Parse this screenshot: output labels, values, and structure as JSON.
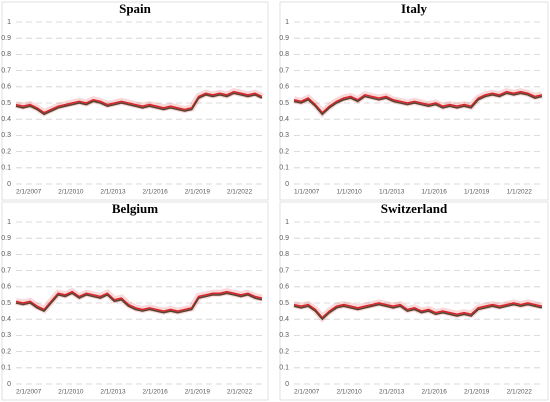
{
  "chart_data": [
    {
      "type": "line",
      "title": "Spain",
      "categories": [
        "2/1/2007",
        null,
        null,
        null,
        null,
        null,
        "2/1/2010",
        null,
        null,
        null,
        null,
        null,
        "2/1/2013",
        null,
        null,
        null,
        null,
        null,
        "2/1/2016",
        null,
        null,
        null,
        null,
        null,
        "2/1/2019",
        null,
        null,
        null,
        null,
        null,
        "2/1/2022",
        null,
        null,
        null,
        null,
        null
      ],
      "series": [
        {
          "color": "#d9262b",
          "values": [
            0.49,
            0.48,
            0.49,
            0.47,
            0.44,
            0.46,
            0.48,
            0.49,
            0.5,
            0.51,
            0.5,
            0.52,
            0.51,
            0.49,
            0.5,
            0.51,
            0.5,
            0.49,
            0.48,
            0.49,
            0.48,
            0.47,
            0.48,
            0.47,
            0.46,
            0.47,
            0.54,
            0.56,
            0.55,
            0.56,
            0.55,
            0.57,
            0.56,
            0.55,
            0.56,
            0.54
          ]
        },
        {
          "color": "#5b4332",
          "values": [
            0.48,
            0.47,
            0.48,
            0.46,
            0.43,
            0.45,
            0.47,
            0.48,
            0.49,
            0.5,
            0.49,
            0.51,
            0.5,
            0.48,
            0.49,
            0.5,
            0.49,
            0.48,
            0.47,
            0.48,
            0.47,
            0.46,
            0.47,
            0.46,
            0.45,
            0.46,
            0.53,
            0.55,
            0.54,
            0.55,
            0.54,
            0.56,
            0.55,
            0.54,
            0.55,
            0.53
          ]
        }
      ],
      "ylim": [
        0,
        1
      ],
      "yticks": [
        0,
        0.1,
        0.2,
        0.3,
        0.4,
        0.5,
        0.6,
        0.7,
        0.8,
        0.9,
        1
      ],
      "grid": true
    },
    {
      "type": "line",
      "title": "Italy",
      "categories": [
        "1/1/2007",
        null,
        null,
        null,
        null,
        null,
        "1/1/2010",
        null,
        null,
        null,
        null,
        null,
        "1/1/2013",
        null,
        null,
        null,
        null,
        null,
        "1/1/2016",
        null,
        null,
        null,
        null,
        null,
        "1/1/2019",
        null,
        null,
        null,
        null,
        null,
        "1/1/2022",
        null,
        null,
        null,
        null,
        null
      ],
      "series": [
        {
          "color": "#d9262b",
          "values": [
            0.52,
            0.51,
            0.53,
            0.49,
            0.44,
            0.48,
            0.51,
            0.53,
            0.54,
            0.52,
            0.55,
            0.54,
            0.53,
            0.54,
            0.52,
            0.51,
            0.5,
            0.51,
            0.5,
            0.49,
            0.5,
            0.48,
            0.49,
            0.48,
            0.49,
            0.48,
            0.53,
            0.55,
            0.56,
            0.55,
            0.57,
            0.56,
            0.57,
            0.56,
            0.54,
            0.55
          ]
        },
        {
          "color": "#5b4332",
          "values": [
            0.51,
            0.5,
            0.52,
            0.48,
            0.43,
            0.47,
            0.5,
            0.52,
            0.53,
            0.51,
            0.54,
            0.53,
            0.52,
            0.53,
            0.51,
            0.5,
            0.49,
            0.5,
            0.49,
            0.48,
            0.49,
            0.47,
            0.48,
            0.47,
            0.48,
            0.47,
            0.52,
            0.54,
            0.55,
            0.54,
            0.56,
            0.55,
            0.56,
            0.55,
            0.53,
            0.54
          ]
        }
      ],
      "ylim": [
        0,
        1
      ],
      "yticks": [
        0,
        0.1,
        0.2,
        0.3,
        0.4,
        0.5,
        0.6,
        0.7,
        0.8,
        0.9,
        1
      ],
      "grid": true
    },
    {
      "type": "line",
      "title": "Belgium",
      "categories": [
        "2/1/2007",
        null,
        null,
        null,
        null,
        null,
        "2/1/2010",
        null,
        null,
        null,
        null,
        null,
        "2/1/2013",
        null,
        null,
        null,
        null,
        null,
        "2/1/2016",
        null,
        null,
        null,
        null,
        null,
        "2/1/2019",
        null,
        null,
        null,
        null,
        null,
        "2/1/2022",
        null,
        null,
        null,
        null,
        null
      ],
      "series": [
        {
          "color": "#d9262b",
          "values": [
            0.51,
            0.5,
            0.51,
            0.48,
            0.46,
            0.51,
            0.56,
            0.55,
            0.57,
            0.54,
            0.56,
            0.55,
            0.54,
            0.56,
            0.52,
            0.53,
            0.49,
            0.47,
            0.46,
            0.47,
            0.46,
            0.45,
            0.46,
            0.45,
            0.46,
            0.47,
            0.54,
            0.55,
            0.56,
            0.56,
            0.57,
            0.56,
            0.55,
            0.56,
            0.54,
            0.53
          ]
        },
        {
          "color": "#5b4332",
          "values": [
            0.5,
            0.49,
            0.5,
            0.47,
            0.45,
            0.5,
            0.55,
            0.54,
            0.56,
            0.53,
            0.55,
            0.54,
            0.53,
            0.55,
            0.51,
            0.52,
            0.48,
            0.46,
            0.45,
            0.46,
            0.45,
            0.44,
            0.45,
            0.44,
            0.45,
            0.46,
            0.53,
            0.54,
            0.55,
            0.55,
            0.56,
            0.55,
            0.54,
            0.55,
            0.53,
            0.52
          ]
        }
      ],
      "ylim": [
        0,
        1
      ],
      "yticks": [
        0,
        0.1,
        0.2,
        0.3,
        0.4,
        0.5,
        0.6,
        0.7,
        0.8,
        0.9,
        1
      ],
      "grid": true
    },
    {
      "type": "line",
      "title": "Switzerland",
      "categories": [
        "2/1/2007",
        null,
        null,
        null,
        null,
        null,
        "2/1/2010",
        null,
        null,
        null,
        null,
        null,
        "2/1/2013",
        null,
        null,
        null,
        null,
        null,
        "2/1/2016",
        null,
        null,
        null,
        null,
        null,
        "2/1/2019",
        null,
        null,
        null,
        null,
        null,
        "2/1/2022",
        null,
        null,
        null,
        null,
        null
      ],
      "series": [
        {
          "color": "#d9262b",
          "values": [
            0.49,
            0.48,
            0.49,
            0.46,
            0.41,
            0.45,
            0.48,
            0.49,
            0.48,
            0.47,
            0.48,
            0.49,
            0.5,
            0.49,
            0.48,
            0.49,
            0.46,
            0.47,
            0.45,
            0.46,
            0.44,
            0.45,
            0.44,
            0.43,
            0.44,
            0.43,
            0.47,
            0.48,
            0.49,
            0.48,
            0.49,
            0.5,
            0.49,
            0.5,
            0.49,
            0.48
          ]
        },
        {
          "color": "#5b4332",
          "values": [
            0.48,
            0.47,
            0.48,
            0.45,
            0.4,
            0.44,
            0.47,
            0.48,
            0.47,
            0.46,
            0.47,
            0.48,
            0.49,
            0.48,
            0.47,
            0.48,
            0.45,
            0.46,
            0.44,
            0.45,
            0.43,
            0.44,
            0.43,
            0.42,
            0.43,
            0.42,
            0.46,
            0.47,
            0.48,
            0.47,
            0.48,
            0.49,
            0.48,
            0.49,
            0.48,
            0.47
          ]
        }
      ],
      "ylim": [
        0,
        1
      ],
      "yticks": [
        0,
        0.1,
        0.2,
        0.3,
        0.4,
        0.5,
        0.6,
        0.7,
        0.8,
        0.9,
        1
      ],
      "grid": true
    }
  ]
}
